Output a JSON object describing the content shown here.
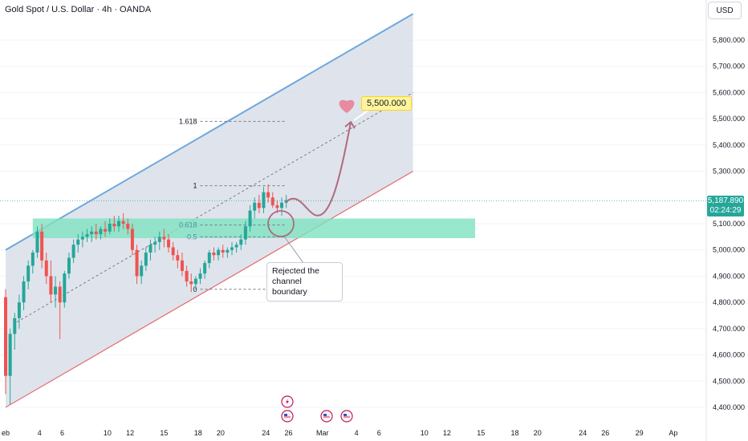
{
  "header": {
    "title": "Gold Spot / U.S. Dollar · 4h · OANDA",
    "currency_button": "USD"
  },
  "price_tag": {
    "price": "5,187.890",
    "countdown": "02:24:29"
  },
  "target_label": "5,500.000",
  "note": {
    "line1": "Rejected the",
    "line2": "channel boundary"
  },
  "colors": {
    "up": "#26a69a",
    "down": "#ef5350",
    "channel_top": "#6fa8dc",
    "channel_bottom": "#e57373",
    "zone": "#7ee2c1",
    "arrow": "#b06a7f",
    "heart": "#e88aa0"
  },
  "chart_data": {
    "type": "candlestick",
    "y_axis": {
      "ylim": [
        4350,
        5900
      ],
      "ticks": [
        {
          "v": 5800,
          "label": "5,800.000"
        },
        {
          "v": 5700,
          "label": "5,700.000"
        },
        {
          "v": 5600,
          "label": "5,600.000"
        },
        {
          "v": 5500,
          "label": "5,500.000"
        },
        {
          "v": 5400,
          "label": "5,400.000"
        },
        {
          "v": 5300,
          "label": "5,300.000"
        },
        {
          "v": 5100,
          "label": "5,100.000"
        },
        {
          "v": 5000,
          "label": "5,000.000"
        },
        {
          "v": 4900,
          "label": "4,900.000"
        },
        {
          "v": 4800,
          "label": "4,800.000"
        },
        {
          "v": 4700,
          "label": "4,700.000"
        },
        {
          "v": 4600,
          "label": "4,600.000"
        },
        {
          "v": 4500,
          "label": "4,500.000"
        },
        {
          "v": 4400,
          "label": "4,400.000"
        }
      ]
    },
    "x_axis": {
      "ticks": [
        {
          "label": "eb",
          "x": 0
        },
        {
          "label": "4",
          "x": 3
        },
        {
          "label": "6",
          "x": 5
        },
        {
          "label": "10",
          "x": 9
        },
        {
          "label": "12",
          "x": 11
        },
        {
          "label": "15",
          "x": 14
        },
        {
          "label": "18",
          "x": 17
        },
        {
          "label": "20",
          "x": 19
        },
        {
          "label": "24",
          "x": 23
        },
        {
          "label": "26",
          "x": 25
        },
        {
          "label": "Mar",
          "x": 28
        },
        {
          "label": "4",
          "x": 31
        },
        {
          "label": "6",
          "x": 33
        },
        {
          "label": "10",
          "x": 37
        },
        {
          "label": "12",
          "x": 39
        },
        {
          "label": "15",
          "x": 42
        },
        {
          "label": "18",
          "x": 45
        },
        {
          "label": "20",
          "x": 47
        },
        {
          "label": "24",
          "x": 51
        },
        {
          "label": "26",
          "x": 53
        },
        {
          "label": "29",
          "x": 56
        },
        {
          "label": "Ap",
          "x": 59
        }
      ]
    },
    "candles": [
      {
        "x": 0.0,
        "o": 4820,
        "h": 4850,
        "l": 4450,
        "c": 4520
      },
      {
        "x": 0.4,
        "o": 4520,
        "h": 4700,
        "l": 4410,
        "c": 4680
      },
      {
        "x": 0.8,
        "o": 4680,
        "h": 4760,
        "l": 4620,
        "c": 4740
      },
      {
        "x": 1.2,
        "o": 4740,
        "h": 4830,
        "l": 4700,
        "c": 4800
      },
      {
        "x": 1.6,
        "o": 4800,
        "h": 4900,
        "l": 4770,
        "c": 4880
      },
      {
        "x": 2.0,
        "o": 4880,
        "h": 4960,
        "l": 4850,
        "c": 4940
      },
      {
        "x": 2.4,
        "o": 4940,
        "h": 5000,
        "l": 4910,
        "c": 4990
      },
      {
        "x": 2.8,
        "o": 4990,
        "h": 5090,
        "l": 4970,
        "c": 5070
      },
      {
        "x": 3.2,
        "o": 5070,
        "h": 5100,
        "l": 4930,
        "c": 4960
      },
      {
        "x": 3.6,
        "o": 4960,
        "h": 4990,
        "l": 4870,
        "c": 4900
      },
      {
        "x": 4.0,
        "o": 4900,
        "h": 4960,
        "l": 4800,
        "c": 4830
      },
      {
        "x": 4.4,
        "o": 4830,
        "h": 4900,
        "l": 4780,
        "c": 4860
      },
      {
        "x": 4.8,
        "o": 4860,
        "h": 4880,
        "l": 4660,
        "c": 4800
      },
      {
        "x": 5.2,
        "o": 4800,
        "h": 4920,
        "l": 4780,
        "c": 4910
      },
      {
        "x": 5.6,
        "o": 4910,
        "h": 4990,
        "l": 4890,
        "c": 4970
      },
      {
        "x": 6.0,
        "o": 4970,
        "h": 5040,
        "l": 4950,
        "c": 5020
      },
      {
        "x": 6.4,
        "o": 5020,
        "h": 5060,
        "l": 4990,
        "c": 5040
      },
      {
        "x": 6.8,
        "o": 5040,
        "h": 5070,
        "l": 5010,
        "c": 5050
      },
      {
        "x": 7.2,
        "o": 5050,
        "h": 5080,
        "l": 5030,
        "c": 5060
      },
      {
        "x": 7.6,
        "o": 5060,
        "h": 5090,
        "l": 5030,
        "c": 5070
      },
      {
        "x": 8.0,
        "o": 5070,
        "h": 5100,
        "l": 5040,
        "c": 5060
      },
      {
        "x": 8.4,
        "o": 5060,
        "h": 5090,
        "l": 5040,
        "c": 5080
      },
      {
        "x": 8.8,
        "o": 5080,
        "h": 5110,
        "l": 5050,
        "c": 5070
      },
      {
        "x": 9.2,
        "o": 5070,
        "h": 5120,
        "l": 5060,
        "c": 5100
      },
      {
        "x": 9.6,
        "o": 5100,
        "h": 5130,
        "l": 5070,
        "c": 5090
      },
      {
        "x": 10.0,
        "o": 5090,
        "h": 5130,
        "l": 5070,
        "c": 5110
      },
      {
        "x": 10.4,
        "o": 5110,
        "h": 5140,
        "l": 5080,
        "c": 5100
      },
      {
        "x": 10.8,
        "o": 5100,
        "h": 5120,
        "l": 5060,
        "c": 5080
      },
      {
        "x": 11.2,
        "o": 5080,
        "h": 5100,
        "l": 4980,
        "c": 5000
      },
      {
        "x": 11.6,
        "o": 5000,
        "h": 5020,
        "l": 4870,
        "c": 4900
      },
      {
        "x": 12.0,
        "o": 4900,
        "h": 4960,
        "l": 4870,
        "c": 4940
      },
      {
        "x": 12.4,
        "o": 4940,
        "h": 5010,
        "l": 4920,
        "c": 4990
      },
      {
        "x": 12.8,
        "o": 4990,
        "h": 5040,
        "l": 4960,
        "c": 5020
      },
      {
        "x": 13.2,
        "o": 5020,
        "h": 5050,
        "l": 4990,
        "c": 5030
      },
      {
        "x": 13.6,
        "o": 5030,
        "h": 5070,
        "l": 5000,
        "c": 5050
      },
      {
        "x": 14.0,
        "o": 5050,
        "h": 5080,
        "l": 5010,
        "c": 5040
      },
      {
        "x": 14.4,
        "o": 5040,
        "h": 5060,
        "l": 4990,
        "c": 5010
      },
      {
        "x": 14.8,
        "o": 5010,
        "h": 5030,
        "l": 4960,
        "c": 4980
      },
      {
        "x": 15.2,
        "o": 4980,
        "h": 5000,
        "l": 4930,
        "c": 4960
      },
      {
        "x": 15.6,
        "o": 4960,
        "h": 4990,
        "l": 4900,
        "c": 4920
      },
      {
        "x": 16.0,
        "o": 4920,
        "h": 4940,
        "l": 4860,
        "c": 4880
      },
      {
        "x": 16.4,
        "o": 4880,
        "h": 4910,
        "l": 4840,
        "c": 4870
      },
      {
        "x": 16.8,
        "o": 4870,
        "h": 4900,
        "l": 4850,
        "c": 4890
      },
      {
        "x": 17.2,
        "o": 4890,
        "h": 4930,
        "l": 4870,
        "c": 4910
      },
      {
        "x": 17.6,
        "o": 4910,
        "h": 4960,
        "l": 4890,
        "c": 4950
      },
      {
        "x": 18.0,
        "o": 4950,
        "h": 5000,
        "l": 4930,
        "c": 4990
      },
      {
        "x": 18.4,
        "o": 4990,
        "h": 5010,
        "l": 4960,
        "c": 4980
      },
      {
        "x": 18.8,
        "o": 4980,
        "h": 5010,
        "l": 4960,
        "c": 5000
      },
      {
        "x": 19.2,
        "o": 5000,
        "h": 5020,
        "l": 4970,
        "c": 4990
      },
      {
        "x": 19.6,
        "o": 4990,
        "h": 5010,
        "l": 4970,
        "c": 5000
      },
      {
        "x": 20.0,
        "o": 5000,
        "h": 5030,
        "l": 4980,
        "c": 5010
      },
      {
        "x": 20.4,
        "o": 5010,
        "h": 5030,
        "l": 4990,
        "c": 5020
      },
      {
        "x": 20.8,
        "o": 5020,
        "h": 5060,
        "l": 5000,
        "c": 5040
      },
      {
        "x": 21.2,
        "o": 5040,
        "h": 5110,
        "l": 5020,
        "c": 5090
      },
      {
        "x": 21.6,
        "o": 5090,
        "h": 5170,
        "l": 5070,
        "c": 5150
      },
      {
        "x": 22.0,
        "o": 5150,
        "h": 5200,
        "l": 5120,
        "c": 5180
      },
      {
        "x": 22.4,
        "o": 5180,
        "h": 5210,
        "l": 5140,
        "c": 5160
      },
      {
        "x": 22.8,
        "o": 5160,
        "h": 5240,
        "l": 5140,
        "c": 5220
      },
      {
        "x": 23.2,
        "o": 5220,
        "h": 5250,
        "l": 5180,
        "c": 5200
      },
      {
        "x": 23.6,
        "o": 5200,
        "h": 5220,
        "l": 5160,
        "c": 5170
      },
      {
        "x": 24.0,
        "o": 5170,
        "h": 5190,
        "l": 5140,
        "c": 5160
      },
      {
        "x": 24.4,
        "o": 5160,
        "h": 5200,
        "l": 5130,
        "c": 5180
      },
      {
        "x": 24.8,
        "o": 5180,
        "h": 5210,
        "l": 5160,
        "c": 5190
      }
    ],
    "fib_levels": [
      {
        "label": "1.618",
        "v": 5490
      },
      {
        "label": "1",
        "v": 5245
      },
      {
        "label": "0.618",
        "v": 5095
      },
      {
        "label": "0.5",
        "v": 5050
      },
      {
        "label": "0",
        "v": 4850
      }
    ],
    "current_price": 5187.89,
    "target_price": 5500
  }
}
